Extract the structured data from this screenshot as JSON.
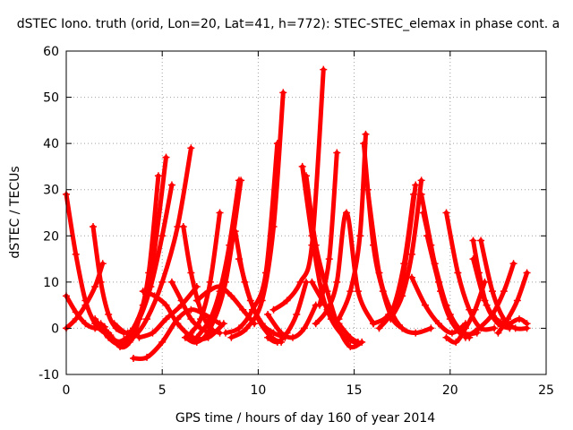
{
  "chart_data": {
    "type": "scatter",
    "title": "dSTEC Iono. truth (orid, Lon=20, Lat=41, h=772): STEC-STEC_elemax in phase cont. a",
    "xlabel": "GPS time / hours of day 160 of year 2014",
    "ylabel": "dSTEC  / TECUs",
    "xlim": [
      0,
      25
    ],
    "ylim": [
      -10,
      60
    ],
    "x_ticks": [
      0,
      5,
      10,
      15,
      20,
      25
    ],
    "y_ticks": [
      -10,
      0,
      10,
      20,
      30,
      40,
      50,
      60
    ],
    "x_tick_labels": [
      "0",
      "5",
      "10",
      "15",
      "20",
      "25"
    ],
    "y_tick_labels": [
      "-10",
      "0",
      "10",
      "20",
      "30",
      "40",
      "50",
      "60"
    ],
    "grid": true,
    "marker": "plus",
    "color": "#ff0000",
    "series": [
      {
        "x": [
          0,
          0.5,
          1,
          1.5,
          2,
          2.3
        ],
        "y": [
          29,
          16,
          6,
          1,
          -1,
          -1.5
        ]
      },
      {
        "x": [
          0,
          0.5,
          1,
          1.5,
          2
        ],
        "y": [
          7,
          3.5,
          1,
          0,
          0.3
        ]
      },
      {
        "x": [
          0,
          0.5,
          1,
          1.5,
          1.9
        ],
        "y": [
          0,
          2,
          5,
          9,
          14
        ]
      },
      {
        "x": [
          1.4,
          1.8,
          2.2,
          2.6,
          3
        ],
        "y": [
          22,
          10,
          3,
          0,
          -1
        ]
      },
      {
        "x": [
          1.5,
          2.2,
          2.8,
          3.5,
          4.2,
          5,
          5.8,
          6.5
        ],
        "y": [
          2,
          -2,
          -3.5,
          -2,
          2,
          10,
          22,
          39
        ]
      },
      {
        "x": [
          1.8,
          2.5,
          3,
          3.5,
          4,
          4.5,
          5.2
        ],
        "y": [
          1,
          -2.5,
          -2.5,
          0,
          5,
          14,
          37
        ]
      },
      {
        "x": [
          2.2,
          2.8,
          3.3,
          3.8,
          4.3,
          4.8
        ],
        "y": [
          -1,
          -4,
          -3,
          2,
          12,
          33
        ]
      },
      {
        "x": [
          2.5,
          3.2,
          3.8,
          4.4,
          5,
          5.5
        ],
        "y": [
          1,
          -1,
          2,
          9,
          20,
          31
        ]
      },
      {
        "x": [
          3.5,
          4.2,
          5,
          5.8,
          6.5,
          7.2,
          8
        ],
        "y": [
          -6.5,
          -6.3,
          -3,
          2,
          4,
          3,
          1
        ]
      },
      {
        "x": [
          3.8,
          4.5,
          5.2,
          6,
          6.8
        ],
        "y": [
          -2,
          -1,
          2,
          5,
          9
        ]
      },
      {
        "x": [
          5.5,
          6,
          6.5,
          7,
          7.5
        ],
        "y": [
          10,
          6,
          2,
          0,
          -1
        ]
      },
      {
        "x": [
          6.1,
          6.5,
          7,
          7.5,
          8
        ],
        "y": [
          22,
          12,
          4,
          0,
          -1
        ]
      },
      {
        "x": [
          4,
          4.6,
          5.2,
          5.8,
          6.6,
          7.4,
          8.2
        ],
        "y": [
          8,
          7,
          5,
          1,
          -2,
          -2,
          1
        ]
      },
      {
        "x": [
          6.5,
          7,
          7.5,
          8
        ],
        "y": [
          -1,
          2,
          10,
          25
        ]
      },
      {
        "x": [
          6.8,
          7.5,
          8,
          8.5,
          9
        ],
        "y": [
          -2,
          2,
          8,
          18,
          32
        ]
      },
      {
        "x": [
          6.2,
          6.8,
          7.5,
          8.3,
          9.1
        ],
        "y": [
          -2,
          -3,
          0,
          10,
          32
        ]
      },
      {
        "x": [
          8.8,
          9.3,
          10,
          10.7,
          11.2
        ],
        "y": [
          21,
          10,
          2,
          -2,
          -3
        ]
      },
      {
        "x": [
          9,
          9.6,
          10.2,
          10.8,
          11.4
        ],
        "y": [
          15,
          6,
          1,
          -1,
          -2
        ]
      },
      {
        "x": [
          8.3,
          9,
          9.7,
          10.4,
          11
        ],
        "y": [
          -1,
          0,
          4,
          12,
          40
        ]
      },
      {
        "x": [
          8.6,
          9.4,
          10.2,
          10.8,
          11.3
        ],
        "y": [
          -2,
          0,
          6,
          22,
          51
        ]
      },
      {
        "x": [
          10.5,
          11,
          11.5,
          12,
          12.5
        ],
        "y": [
          -2,
          -3,
          -1,
          3,
          10
        ]
      },
      {
        "x": [
          10.5,
          11.2,
          11.8,
          12.4,
          13
        ],
        "y": [
          3,
          -1,
          -2,
          0,
          5
        ]
      },
      {
        "x": [
          10.8,
          11.5,
          12.2,
          12.8,
          13.4
        ],
        "y": [
          4,
          6,
          10,
          18,
          56
        ]
      },
      {
        "x": [
          12.3,
          12.8,
          13.3,
          13.8,
          14.5,
          15
        ],
        "y": [
          35,
          20,
          8,
          2,
          -2,
          -3
        ]
      },
      {
        "x": [
          12.5,
          13,
          13.6,
          14.2,
          14.8,
          15.4
        ],
        "y": [
          33,
          18,
          8,
          0,
          -4,
          -3
        ]
      },
      {
        "x": [
          12.8,
          13.5,
          14.2,
          14.8,
          15.2
        ],
        "y": [
          10,
          5,
          1,
          -2,
          -3
        ]
      },
      {
        "x": [
          13,
          13.6,
          14.1,
          14.6,
          15.2,
          16
        ],
        "y": [
          1,
          4,
          10,
          25,
          8,
          1
        ]
      },
      {
        "x": [
          13.2,
          13.7,
          14.1
        ],
        "y": [
          5,
          15,
          38
        ]
      },
      {
        "x": [
          14.2,
          14.8,
          15.3,
          15.6
        ],
        "y": [
          2,
          8,
          20,
          42
        ]
      },
      {
        "x": [
          15.5,
          16,
          16.5,
          17,
          17.5
        ],
        "y": [
          40,
          18,
          8,
          2,
          0
        ]
      },
      {
        "x": [
          15.7,
          16.3,
          16.9,
          17.5,
          18.2,
          19
        ],
        "y": [
          30,
          12,
          4,
          0,
          -1,
          0
        ]
      },
      {
        "x": [
          16,
          16.8,
          17.5,
          18.2
        ],
        "y": [
          1,
          3,
          10,
          31
        ]
      },
      {
        "x": [
          16.3,
          17,
          17.6,
          18.1
        ],
        "y": [
          0,
          4,
          14,
          29
        ]
      },
      {
        "x": [
          16.9,
          17.5,
          18,
          18.5
        ],
        "y": [
          2,
          7,
          16,
          32
        ]
      },
      {
        "x": [
          18.5,
          19,
          19.5,
          20,
          20.5
        ],
        "y": [
          29,
          18,
          8,
          2,
          -1
        ]
      },
      {
        "x": [
          18.6,
          19.2,
          19.8,
          20.4,
          21
        ],
        "y": [
          25,
          14,
          5,
          0,
          -2
        ]
      },
      {
        "x": [
          18.8,
          19.4,
          20,
          20.7,
          21.4
        ],
        "y": [
          20,
          10,
          3,
          -1,
          -1
        ]
      },
      {
        "x": [
          19.8,
          20.4,
          21,
          21.6,
          22.3
        ],
        "y": [
          25,
          12,
          4,
          0,
          0
        ]
      },
      {
        "x": [
          21.2,
          21.5,
          21.9,
          22.5,
          23.1
        ],
        "y": [
          19,
          12,
          5,
          1,
          0
        ]
      },
      {
        "x": [
          21.6,
          22.2,
          22.8,
          23.4,
          24
        ],
        "y": [
          19,
          8,
          2,
          0,
          0
        ]
      },
      {
        "x": [
          21.2,
          21.8,
          22.4,
          23,
          23.6,
          24
        ],
        "y": [
          15,
          6,
          2,
          1,
          2,
          1
        ]
      },
      {
        "x": [
          20.8,
          21.5,
          22.2,
          22.8,
          23.3
        ],
        "y": [
          -2,
          0,
          3,
          8,
          14
        ]
      },
      {
        "x": [
          22.5,
          23,
          23.5,
          24
        ],
        "y": [
          -1,
          2,
          6,
          12
        ]
      },
      {
        "x": [
          18,
          18.7,
          19.4,
          20.1,
          20.8
        ],
        "y": [
          11,
          5,
          1,
          -1,
          1
        ]
      },
      {
        "x": [
          19.8,
          20.3,
          20.8,
          21.3,
          21.8
        ],
        "y": [
          -2,
          -3,
          0,
          4,
          10
        ]
      },
      {
        "x": [
          6.8,
          7.4,
          8,
          8.6,
          9.2,
          9.8
        ],
        "y": [
          6,
          8,
          9,
          7,
          4,
          1
        ]
      }
    ]
  }
}
